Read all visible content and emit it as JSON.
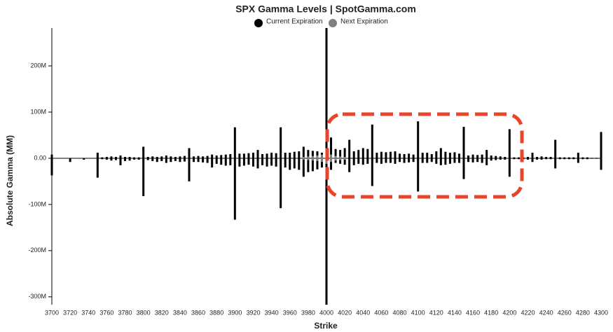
{
  "chart_data": {
    "type": "bar",
    "title": "SPX Gamma Levels | SpotGamma.com",
    "x_label": "Strike",
    "y_label": "Absolute Gamma (MM)",
    "xlim": [
      3700,
      4300
    ],
    "xticks": [
      3700,
      3720,
      3740,
      3760,
      3780,
      3800,
      3820,
      3840,
      3860,
      3880,
      3900,
      3920,
      3940,
      3960,
      3980,
      4000,
      4020,
      4040,
      4060,
      4080,
      4100,
      4120,
      4140,
      4160,
      4180,
      4200,
      4220,
      4240,
      4260,
      4280,
      4300
    ],
    "ylim": [
      -317,
      282
    ],
    "yticks": [
      {
        "value": -300,
        "label": "-300M"
      },
      {
        "value": -200,
        "label": "-200M"
      },
      {
        "value": -100,
        "label": "-100M"
      },
      {
        "value": 0,
        "label": "0.00"
      },
      {
        "value": 100,
        "label": "100M"
      },
      {
        "value": 200,
        "label": "200M"
      }
    ],
    "series": [
      {
        "name": "Current Expiration",
        "color": "#000000",
        "x": [
          3700,
          3705,
          3710,
          3715,
          3720,
          3725,
          3730,
          3735,
          3740,
          3745,
          3750,
          3755,
          3760,
          3765,
          3770,
          3775,
          3780,
          3785,
          3790,
          3795,
          3800,
          3805,
          3810,
          3815,
          3820,
          3825,
          3830,
          3835,
          3840,
          3845,
          3850,
          3855,
          3860,
          3865,
          3870,
          3875,
          3880,
          3885,
          3890,
          3895,
          3900,
          3905,
          3910,
          3915,
          3920,
          3925,
          3930,
          3935,
          3940,
          3945,
          3950,
          3955,
          3960,
          3965,
          3970,
          3975,
          3980,
          3985,
          3990,
          3995,
          4000,
          4005,
          4010,
          4015,
          4020,
          4025,
          4030,
          4035,
          4040,
          4045,
          4050,
          4055,
          4060,
          4065,
          4070,
          4075,
          4080,
          4085,
          4090,
          4095,
          4100,
          4105,
          4110,
          4115,
          4120,
          4125,
          4130,
          4135,
          4140,
          4145,
          4150,
          4155,
          4160,
          4165,
          4170,
          4175,
          4180,
          4185,
          4190,
          4195,
          4200,
          4205,
          4210,
          4215,
          4220,
          4225,
          4230,
          4235,
          4240,
          4245,
          4250,
          4255,
          4260,
          4265,
          4270,
          4275,
          4280,
          4285,
          4290,
          4295,
          4300
        ],
        "values": [
          8,
          0,
          0,
          0,
          0,
          0,
          0,
          0,
          0,
          0,
          12,
          2,
          3,
          4,
          3,
          6,
          3,
          3,
          2,
          2,
          25,
          3,
          4,
          3,
          4,
          6,
          4,
          3,
          4,
          5,
          22,
          4,
          5,
          4,
          5,
          8,
          6,
          7,
          8,
          9,
          67,
          10,
          10,
          11,
          12,
          18,
          9,
          10,
          12,
          11,
          67,
          12,
          12,
          14,
          15,
          25,
          18,
          16,
          15,
          12,
          282,
          45,
          20,
          18,
          22,
          40,
          15,
          18,
          22,
          20,
          73,
          12,
          14,
          13,
          14,
          15,
          10,
          9,
          10,
          8,
          80,
          12,
          12,
          9,
          15,
          22,
          14,
          12,
          13,
          10,
          68,
          6,
          8,
          7,
          8,
          18,
          6,
          5,
          4,
          3,
          63,
          2,
          2,
          2,
          3,
          12,
          3,
          4,
          3,
          3,
          40,
          2,
          2,
          2,
          2,
          12,
          2,
          2,
          1,
          1,
          57
        ],
        "put_values": [
          -37,
          0,
          0,
          0,
          -8,
          0,
          0,
          -3,
          0,
          0,
          -42,
          -2,
          -3,
          -5,
          -4,
          -15,
          -6,
          -5,
          -3,
          -3,
          -82,
          -4,
          -6,
          -8,
          -6,
          -10,
          -8,
          -6,
          -8,
          -7,
          -50,
          -8,
          -8,
          -9,
          -10,
          -20,
          -12,
          -14,
          -16,
          -15,
          -133,
          -18,
          -16,
          -14,
          -18,
          -22,
          -15,
          -18,
          -16,
          -18,
          -108,
          -20,
          -25,
          -22,
          -25,
          -40,
          -30,
          -28,
          -24,
          -20,
          -317,
          -25,
          -10,
          -12,
          -14,
          -30,
          -15,
          -12,
          -14,
          -12,
          -60,
          -10,
          -12,
          -10,
          -10,
          -12,
          -8,
          -10,
          -9,
          -8,
          -72,
          -10,
          -10,
          -8,
          -12,
          -15,
          -14,
          -12,
          -10,
          -10,
          -45,
          -8,
          -9,
          -8,
          -10,
          -15,
          -5,
          -4,
          -3,
          -3,
          -40,
          -2,
          -2,
          -2,
          -3,
          -8,
          -3,
          -3,
          -2,
          -2,
          -22,
          -2,
          -2,
          -2,
          -2,
          -10,
          -2,
          -2,
          -1,
          -1,
          -25
        ]
      },
      {
        "name": "Next Expiration",
        "color": "#808080",
        "x": [
          3975,
          3980,
          3985,
          3990,
          3995,
          4000,
          4005,
          4010,
          4015,
          4020
        ],
        "values": [
          3,
          4,
          5,
          6,
          8,
          10,
          8,
          5,
          4,
          3
        ],
        "put_values": [
          -3,
          -4,
          -5,
          -6,
          -8,
          -12,
          -8,
          -5,
          -4,
          -3
        ]
      }
    ]
  }
}
